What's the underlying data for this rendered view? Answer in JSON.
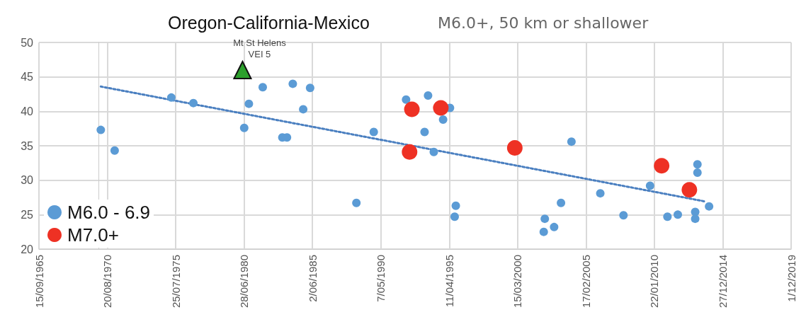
{
  "chart_data": {
    "type": "scatter",
    "title": "Oregon-California-Mexico",
    "subtitle": "M6.0+, 50 km or shallower",
    "xlim": [
      "1965-09-15",
      "2019-12-01"
    ],
    "xticks": [
      {
        "value": "1965-09-15",
        "label": "15/09/1965"
      },
      {
        "value": "1970-08-20",
        "label": "20/08/1970"
      },
      {
        "value": "1975-07-25",
        "label": "25/07/1975"
      },
      {
        "value": "1980-06-28",
        "label": "28/06/1980"
      },
      {
        "value": "1985-06-02",
        "label": "2/06/1985"
      },
      {
        "value": "1990-05-07",
        "label": "7/05/1990"
      },
      {
        "value": "1995-04-11",
        "label": "11/04/1995"
      },
      {
        "value": "2000-03-15",
        "label": "15/03/2000"
      },
      {
        "value": "2005-02-17",
        "label": "17/02/2005"
      },
      {
        "value": "2010-01-22",
        "label": "22/01/2010"
      },
      {
        "value": "2014-12-27",
        "label": "27/12/2014"
      },
      {
        "value": "2019-12-01",
        "label": "1/12/2019"
      }
    ],
    "ylim": [
      20,
      50
    ],
    "yticks": [
      20,
      25,
      30,
      35,
      40,
      45,
      50
    ],
    "grid": true,
    "legend": "bottom left",
    "marker": "circle",
    "series": [
      {
        "name": "M6.0 - 6.9",
        "color": "#5b9bd5",
        "x": [
          "1970-03",
          "1971-03",
          "1975-04",
          "1976-11",
          "1980-07",
          "1980-11",
          "1981-11",
          "1983-04",
          "1983-08",
          "1984-01",
          "1985-04",
          "1984-10",
          "1988-08",
          "1989-11",
          "1992-03",
          "1993-10",
          "1993-07",
          "1995-05",
          "1994-11",
          "1994-03",
          "1995-10",
          "1995-09",
          "2002-03",
          "2002-02",
          "2002-11",
          "2003-05",
          "2004-02",
          "2006-03",
          "2007-11",
          "2009-10",
          "2011-01",
          "2011-10",
          "2013-03",
          "2013-03",
          "2013-01",
          "2013-01",
          "2014-01"
        ],
        "values": [
          37.3,
          34.3,
          42.0,
          41.2,
          37.6,
          41.1,
          43.5,
          36.2,
          36.2,
          44.0,
          43.4,
          40.3,
          26.7,
          37.0,
          41.7,
          42.3,
          37.0,
          40.5,
          38.8,
          34.1,
          26.3,
          24.7,
          24.4,
          22.5,
          23.2,
          26.7,
          35.6,
          28.1,
          24.9,
          29.2,
          24.7,
          25.0,
          32.3,
          31.1,
          25.4,
          24.4,
          26.2
        ]
      },
      {
        "name": "M7.0+",
        "color": "#ee3124",
        "x": [
          "1992-08",
          "1992-06",
          "1994-09",
          "2000-01",
          "2010-08",
          "2012-08"
        ],
        "values": [
          40.3,
          34.1,
          40.5,
          34.7,
          32.1,
          28.6
        ]
      },
      {
        "type": "scatter",
        "marker": "triangle",
        "color": "#2ca02c",
        "x": [
          "1980-05-18"
        ],
        "values": [
          46
        ]
      },
      {
        "type": "line",
        "line_style": "dotted",
        "marker": "none",
        "color": "#4a7fc0",
        "x": [
          "1970-03",
          "2013-10"
        ],
        "values": [
          43.6,
          26.9
        ]
      }
    ],
    "annotations": [
      {
        "text": "Mt St Helens\nVEI 5",
        "x": "1980-05-18",
        "y": 46
      }
    ]
  }
}
